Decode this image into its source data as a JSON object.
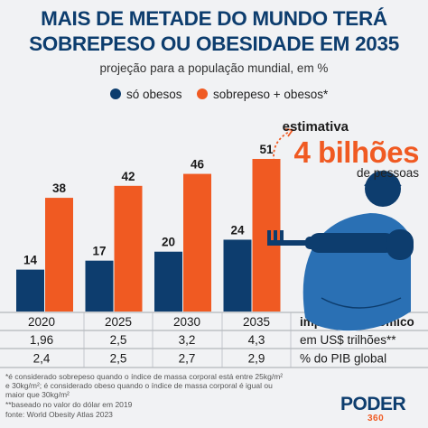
{
  "title_line1": "MAIS DE METADE DO MUNDO TERÁ",
  "title_line2": "SOBREPESO OU OBESIDADE EM 2035",
  "subtitle": "projeção para a população mundial, em %",
  "colors": {
    "obese": "#0d3d6e",
    "overweight": "#f05a22",
    "title": "#0d3d6e"
  },
  "chart_data": {
    "type": "bar",
    "categories": [
      "2020",
      "2025",
      "2030",
      "2035"
    ],
    "series": [
      {
        "name": "só obesos",
        "values": [
          14,
          17,
          20,
          24
        ],
        "color": "#0d3d6e"
      },
      {
        "name": "sobrepeso + obesos*",
        "values": [
          38,
          42,
          46,
          51
        ],
        "color": "#f05a22"
      }
    ],
    "ylim": [
      0,
      51
    ],
    "legend_position": "top",
    "grid": false
  },
  "annotation": {
    "label": "estimativa",
    "value": "4 bilhões",
    "unit": "de pessoas"
  },
  "icons": [
    "obese-person-with-fork-icon",
    "dotted-arrow-icon",
    "dot-icon"
  ],
  "table": {
    "header": "impacto econômico",
    "rows": [
      {
        "values": [
          "1,96",
          "2,5",
          "3,2",
          "4,3"
        ],
        "label": "em US$ trilhões**"
      },
      {
        "values": [
          "2,4",
          "2,5",
          "2,7",
          "2,9"
        ],
        "label": "% do PIB global"
      }
    ]
  },
  "footnotes": [
    "*é considerado sobrepeso quando o índice de massa corporal está entre 25kg/m²",
    "e 30kg/m²; é considerado obeso quando o índice de massa corporal é igual ou",
    "maior que 30kg/m²",
    "**baseado no valor do dólar em 2019",
    "fonte: World Obesity Atlas 2023"
  ],
  "logo": {
    "name": "PODER",
    "sub": "360"
  }
}
